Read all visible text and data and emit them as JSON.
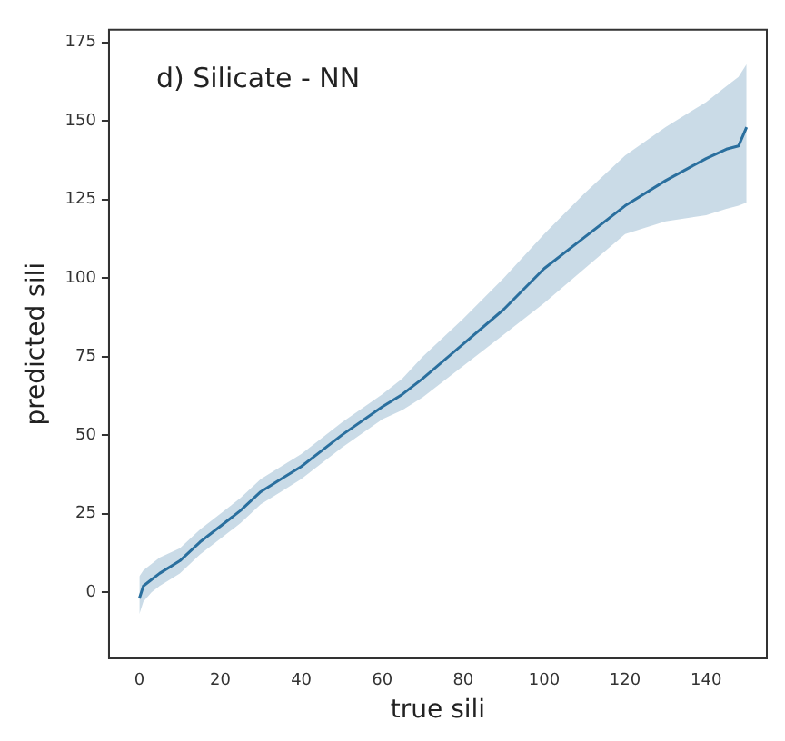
{
  "chart_data": {
    "type": "line",
    "title": "d) Silicate - NN",
    "xlabel": "true sili",
    "ylabel": "predicted sili",
    "xlim": [
      -7.5,
      155
    ],
    "xticks": [
      0,
      20,
      40,
      60,
      80,
      100,
      120,
      140
    ],
    "ylim": [
      -21,
      179
    ],
    "yticks": [
      0,
      25,
      50,
      75,
      100,
      125,
      150,
      175
    ],
    "grid": false,
    "marker": "none",
    "line_style": "solid",
    "series": [
      {
        "color": "#2a6f9e",
        "x": [
          0,
          1,
          3,
          5,
          10,
          15,
          20,
          25,
          30,
          35,
          40,
          50,
          60,
          65,
          70,
          80,
          90,
          100,
          110,
          120,
          130,
          140,
          145,
          148,
          150
        ],
        "values": [
          -2,
          2,
          4,
          6,
          10,
          16,
          21,
          26,
          32,
          36,
          40,
          50,
          59,
          63,
          68,
          79,
          90,
          103,
          113,
          123,
          131,
          138,
          141,
          142,
          148
        ],
        "lower": [
          -7,
          -3,
          0,
          2,
          6,
          12,
          17,
          22,
          28,
          32,
          36,
          46,
          55,
          58,
          62,
          72,
          82,
          92,
          103,
          114,
          118,
          120,
          122,
          123,
          124
        ],
        "upper": [
          5,
          7,
          9,
          11,
          14,
          20,
          25,
          30,
          36,
          40,
          44,
          54,
          63,
          68,
          75,
          87,
          100,
          114,
          127,
          139,
          148,
          156,
          161,
          164,
          168
        ]
      }
    ]
  }
}
